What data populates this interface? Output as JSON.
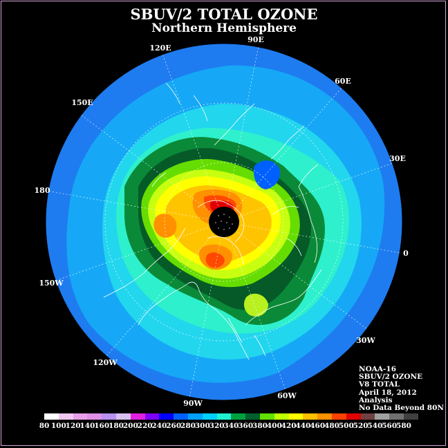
{
  "header": {
    "title": "SBUV/2 TOTAL OZONE",
    "subtitle": "Northern Hemisphere"
  },
  "longitude_labels": {
    "e120": "120E",
    "e90": "90E",
    "e60": "60E",
    "e150": "150E",
    "e30": "30E",
    "d180": "180",
    "d0": "0",
    "w150": "150W",
    "w30": "30W",
    "w120": "120W",
    "w60": "60W",
    "w90": "90W"
  },
  "info": {
    "satellite": "NOAA-16",
    "product": "SBUV/2 OZONE",
    "version": "V8 TOTAL",
    "date": "April 18, 2012",
    "type": "Analysis",
    "note": "No Data Beyond 80N"
  },
  "color_scale": {
    "ticks": [
      "80",
      "100",
      "120",
      "140",
      "160",
      "180",
      "200",
      "220",
      "240",
      "260",
      "280",
      "300",
      "320",
      "340",
      "360",
      "380",
      "400",
      "420",
      "440",
      "460",
      "480",
      "500",
      "520",
      "540",
      "560",
      "580"
    ],
    "colors": [
      "#ffffff",
      "#f0c8f0",
      "#e8a0e8",
      "#e090e8",
      "#b890f0",
      "#d8c0f0",
      "#e020e0",
      "#8000ff",
      "#0000ff",
      "#0060ff",
      "#00a0ff",
      "#00d0ff",
      "#20f0d0",
      "#00a040",
      "#006030",
      "#60e000",
      "#c0ff00",
      "#ffff00",
      "#ffc000",
      "#ff9000",
      "#ff4000",
      "#e00000",
      "#704040",
      "#a0a0a0",
      "#707070",
      "#404040"
    ]
  },
  "colors": {
    "pole_no_data": "#000000",
    "coastlines": "#ffffff"
  }
}
